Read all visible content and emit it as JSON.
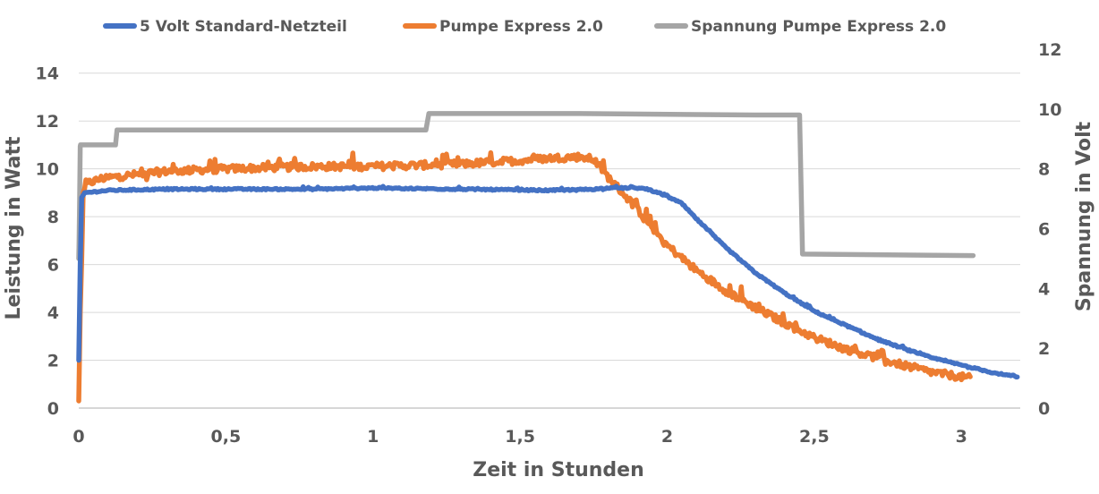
{
  "chart_data": {
    "type": "line",
    "xlabel": "Zeit in Stunden",
    "ylabel": "Leistung in Watt",
    "y2label": "Spannung in Volt",
    "xlim": [
      0,
      3.2
    ],
    "ylim": [
      0,
      15
    ],
    "y2lim": [
      0,
      12
    ],
    "x_ticks": [
      0,
      0.5,
      1,
      1.5,
      2,
      2.5,
      3
    ],
    "x_tick_labels": [
      "0",
      "0,5",
      "1",
      "1,5",
      "2",
      "2,5",
      "3"
    ],
    "y_ticks": [
      0,
      2,
      4,
      6,
      8,
      10,
      12,
      14
    ],
    "y_tick_labels": [
      "0",
      "2",
      "4",
      "6",
      "8",
      "10",
      "12",
      "14"
    ],
    "y2_ticks": [
      0,
      2,
      4,
      6,
      8,
      10,
      12
    ],
    "y2_tick_labels": [
      "0",
      "2",
      "4",
      "6",
      "8",
      "10",
      "12"
    ],
    "grid": true,
    "legend_position": "top",
    "series": [
      {
        "name": "5 Volt Standard-Netzteil",
        "axis": "left",
        "color": "#4472c4",
        "noise": 0.06,
        "x": [
          0,
          0.005,
          0.01,
          0.02,
          0.1,
          0.3,
          0.5,
          0.8,
          1.0,
          1.3,
          1.6,
          1.75,
          1.8,
          1.9,
          1.93,
          1.97,
          2.0,
          2.05,
          2.1,
          2.2,
          2.3,
          2.4,
          2.5,
          2.6,
          2.7,
          2.8,
          2.9,
          3.0,
          3.1,
          3.19
        ],
        "y": [
          2,
          6,
          8.8,
          9.0,
          9.1,
          9.15,
          9.15,
          9.15,
          9.2,
          9.15,
          9.1,
          9.15,
          9.2,
          9.2,
          9.15,
          9.0,
          8.85,
          8.55,
          7.9,
          6.7,
          5.65,
          4.8,
          4.05,
          3.5,
          2.95,
          2.5,
          2.1,
          1.8,
          1.5,
          1.3
        ]
      },
      {
        "name": "Pumpe Express 2.0",
        "axis": "left",
        "color": "#ed7d31",
        "noise": 0.3,
        "x": [
          0,
          0.005,
          0.01,
          0.015,
          0.03,
          0.08,
          0.15,
          0.3,
          0.5,
          0.8,
          1.0,
          1.3,
          1.5,
          1.6,
          1.7,
          1.75,
          1.8,
          1.9,
          2.0,
          2.1,
          2.2,
          2.3,
          2.4,
          2.5,
          2.6,
          2.7,
          2.8,
          2.9,
          3.0,
          3.03
        ],
        "y": [
          0.3,
          4,
          6.2,
          9.0,
          9.4,
          9.6,
          9.7,
          9.9,
          10.0,
          10.1,
          10.1,
          10.2,
          10.35,
          10.45,
          10.5,
          10.4,
          9.65,
          8.3,
          6.8,
          5.75,
          4.9,
          4.2,
          3.55,
          2.95,
          2.5,
          2.15,
          1.8,
          1.5,
          1.3,
          1.25
        ]
      },
      {
        "name": "Spannung Pumpe Express 2.0",
        "axis": "right",
        "color": "#a5a5a5",
        "noise": 0,
        "x": [
          0,
          0.001,
          0.003,
          0.005,
          0.006,
          0.125,
          0.13,
          1.18,
          1.19,
          1.7,
          2.3,
          2.45,
          2.46,
          3.04
        ],
        "y": [
          5,
          5.5,
          7,
          8.75,
          8.8,
          8.8,
          9.3,
          9.3,
          9.85,
          9.85,
          9.8,
          9.8,
          5.15,
          5.1
        ]
      }
    ]
  }
}
